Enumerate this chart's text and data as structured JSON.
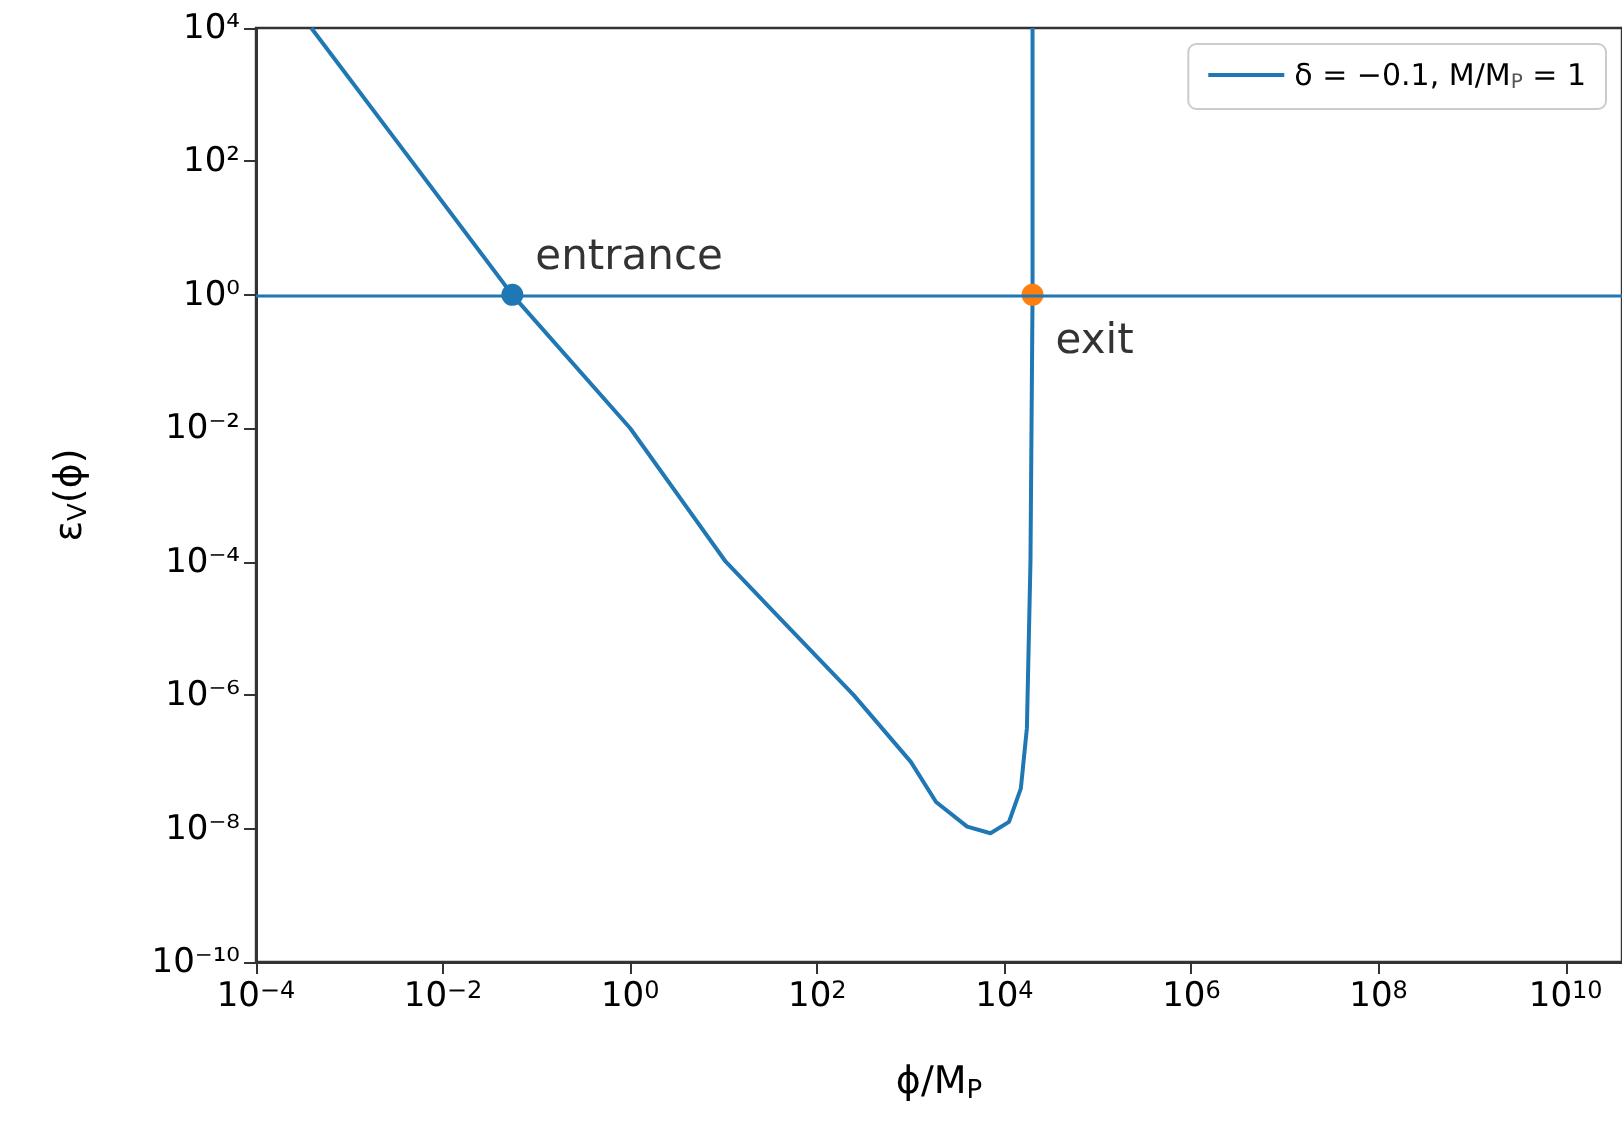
{
  "chart_data": {
    "type": "line",
    "x": [
      0.00039,
      0.0032,
      0.055,
      1,
      10.5,
      245,
      1000,
      1860,
      4000,
      7100,
      11200,
      15000,
      17400,
      19000,
      20000,
      20000
    ],
    "series": [
      {
        "name": "δ = −0.1, M/M$_{P}$ = 1",
        "color": "#1f77b4",
        "values": [
          10000,
          200,
          1,
          0.01,
          0.0001,
          1e-06,
          1e-07,
          2.5e-08,
          1.07e-08,
          8.5e-09,
          1.26e-08,
          4e-08,
          3.2e-07,
          0.0001,
          1,
          10000
        ]
      },
      {
        "type": "scatter",
        "marker": "circle",
        "color": "#1f77b4",
        "x": [
          0.055
        ],
        "values": [
          1
        ]
      },
      {
        "type": "scatter",
        "marker": "circle",
        "color": "#ff7f0e",
        "x": [
          20000
        ],
        "values": [
          1
        ]
      }
    ],
    "xlabel": "ϕ/M$_{P}$",
    "ylabel": "ε$_{V}$(ϕ)",
    "log": "xy",
    "xlim": [
      0.0001,
      40000000000
    ],
    "ylim": [
      1e-10,
      10000
    ],
    "xticks": [
      {
        "value": 0.0001,
        "label": "10$^{−4}$"
      },
      {
        "value": 0.01,
        "label": "10$^{−2}$"
      },
      {
        "value": 1,
        "label": "10$^{0}$"
      },
      {
        "value": 100,
        "label": "10$^{2}$"
      },
      {
        "value": 10000,
        "label": "10$^{4}$"
      },
      {
        "value": 1000000,
        "label": "10$^{6}$"
      },
      {
        "value": 100000000,
        "label": "10$^{8}$"
      },
      {
        "value": 10000000000,
        "label": "10$^{10}$"
      }
    ],
    "yticks": [
      {
        "value": 1e-10,
        "label": "10⁻¹⁰"
      },
      {
        "value": 1e-08,
        "label": "10⁻⁸"
      },
      {
        "value": 1e-06,
        "label": "10⁻⁶"
      },
      {
        "value": 0.0001,
        "label": "10⁻⁴"
      },
      {
        "value": 0.01,
        "label": "10⁻²"
      },
      {
        "value": 1,
        "label": "10⁰"
      },
      {
        "value": 100,
        "label": "10²"
      },
      {
        "value": 10000,
        "label": "10⁴"
      }
    ],
    "ref_lines": [
      {
        "axis": "y",
        "value": 1,
        "color": "#1f77b4"
      }
    ],
    "annotations": [
      {
        "text": "entrance",
        "x": 0.055,
        "y": 1
      },
      {
        "text": "exit",
        "x": 20000,
        "y": 1
      }
    ],
    "legend": "top right",
    "grid": false,
    "marker": "none"
  }
}
